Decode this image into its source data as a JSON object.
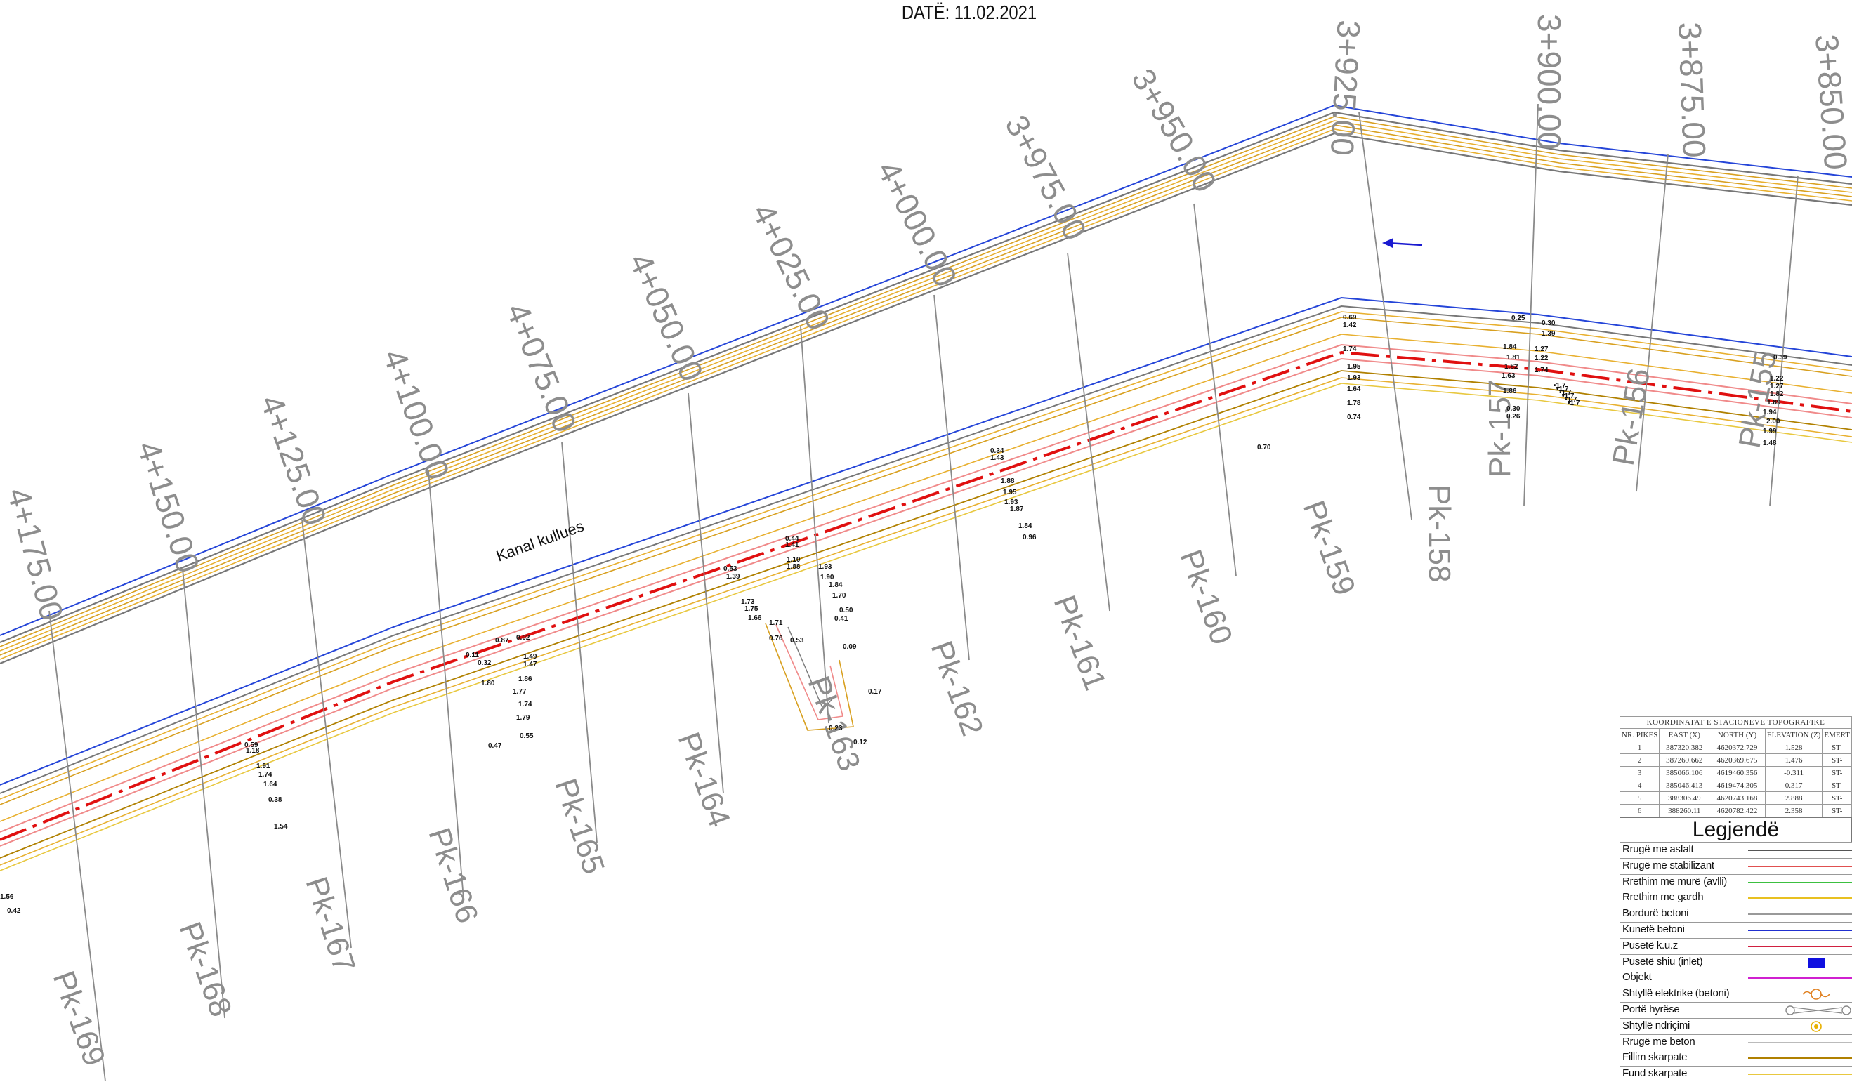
{
  "header": {
    "date": "DATË: 11.02.2021"
  },
  "drawing": {
    "canal_label": "Kanal kullues",
    "chainage_labels": [
      "4+175.00",
      "4+150.00",
      "4+125.00",
      "4+100.00",
      "4+075.00",
      "4+050.00",
      "4+025.00",
      "4+000.00",
      "3+975.00",
      "3+950.00",
      "3+925.00",
      "3+900.00",
      "3+875.00",
      "3+850.00"
    ],
    "profile_labels": [
      "Pk-169",
      "Pk-168",
      "Pk-167",
      "Pk-166",
      "Pk-165",
      "Pk-164",
      "Pk-163",
      "Pk-162",
      "Pk-161",
      "Pk-160",
      "Pk-159",
      "Pk-158",
      "Pk-157",
      "Pk-156",
      "Pk-155"
    ],
    "spot_elevations": [
      "0.69",
      "1.42",
      "0.25",
      "0.30",
      "1.39",
      "1.74",
      "1.95",
      "1.93",
      "1.64",
      "1.78",
      "0.74",
      "1.84",
      "1.81",
      "1.82",
      "1.63",
      "1.86",
      "0.30",
      "0.26",
      "1.27",
      "1.22",
      "1.74",
      "0.39",
      "1.22",
      "1.27",
      "1.82",
      "1.89",
      "1.94",
      "2.00",
      "1.99",
      "1.48",
      "0.70",
      "0.34",
      "1.43",
      "1.88",
      "1.95",
      "1.93",
      "1.87",
      "1.84",
      "0.96",
      "0.44",
      "1.41",
      "1.10",
      "1.88",
      "1.93",
      "1.90",
      "1.84",
      "1.70",
      "0.53",
      "1.39",
      "1.73",
      "1.75",
      "1.66",
      "1.71",
      "0.50",
      "0.41",
      "0.76",
      "0.53",
      "0.09",
      "0.17",
      "0.23",
      "0.12",
      "0.87",
      "0.02",
      "1.49",
      "1.47",
      "0.11",
      "0.32",
      "1.86",
      "1.80",
      "1.77",
      "1.74",
      "1.79",
      "0.55",
      "0.47",
      "0.59",
      "1.18",
      "1.91",
      "1.74",
      "1.64",
      "0.38",
      "1.54",
      "1.56",
      "0.42"
    ]
  },
  "station_table": {
    "title": "KOORDINATAT E STACIONEVE TOPOGRAFIKE",
    "headers": [
      "NR. PIKES",
      "EAST (X)",
      "NORTH (Y)",
      "ELEVATION (Z)",
      "EMERT"
    ],
    "rows": [
      [
        "1",
        "387320.382",
        "4620372.729",
        "1.528",
        "ST-"
      ],
      [
        "2",
        "387269.662",
        "4620369.675",
        "1.476",
        "ST-"
      ],
      [
        "3",
        "385066.106",
        "4619460.356",
        "-0.311",
        "ST-"
      ],
      [
        "4",
        "385046.413",
        "4619474.305",
        "0.317",
        "ST-"
      ],
      [
        "5",
        "388306.49",
        "4620743.168",
        "2.888",
        "ST-"
      ],
      [
        "6",
        "388260.11",
        "4620782.422",
        "2.358",
        "ST-"
      ]
    ]
  },
  "legend": {
    "title": "Legjendë",
    "items": [
      {
        "label": "Rrugë me asfalt",
        "symbol": "line",
        "color": "#555555"
      },
      {
        "label": "Rrugë me stabilizant",
        "symbol": "line",
        "color": "#e05050"
      },
      {
        "label": "Rrethim me murë (avlli)",
        "symbol": "line",
        "color": "#3cc040"
      },
      {
        "label": "Rrethim me gardh",
        "symbol": "line",
        "color": "#e8c020"
      },
      {
        "label": "Bordurë betoni",
        "symbol": "line",
        "color": "#999999"
      },
      {
        "label": "Kunetë betoni",
        "symbol": "line",
        "color": "#2030d0"
      },
      {
        "label": "Pusetë k.u.z",
        "symbol": "line",
        "color": "#d02040"
      },
      {
        "label": "Pusetë shiu (inlet)",
        "symbol": "square",
        "color": "#1010e0"
      },
      {
        "label": "Objekt",
        "symbol": "line",
        "color": "#d020d0"
      },
      {
        "label": "Shtyllë elektrike (betoni)",
        "symbol": "pole",
        "color": "#e08020"
      },
      {
        "label": "Portë hyrëse",
        "symbol": "gate",
        "color": "#888888"
      },
      {
        "label": "Shtyllë ndriçimi",
        "symbol": "lamp",
        "color": "#e8b000"
      },
      {
        "label": "Rrugë me beton",
        "symbol": "line",
        "color": "#bbbbbb"
      },
      {
        "label": "Fillim skarpate",
        "symbol": "line",
        "color": "#b08000"
      },
      {
        "label": "Fund skarpate",
        "symbol": "line",
        "color": "#e8c840"
      }
    ]
  }
}
